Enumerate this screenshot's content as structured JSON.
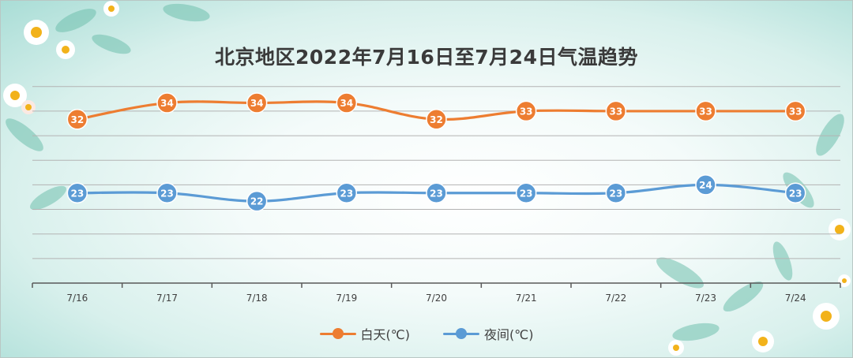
{
  "chart_data": {
    "type": "line",
    "title": "北京地区2022年7月16日至7月24日气温趋势",
    "categories": [
      "7/16",
      "7/17",
      "7/18",
      "7/19",
      "7/20",
      "7/21",
      "7/22",
      "7/23",
      "7/24"
    ],
    "series": [
      {
        "name": "白天(℃)",
        "color": "#ED7D31",
        "values": [
          32,
          34,
          34,
          34,
          32,
          33,
          33,
          33,
          33
        ]
      },
      {
        "name": "夜间(℃)",
        "color": "#5B9BD5",
        "values": [
          23,
          23,
          22,
          23,
          23,
          23,
          23,
          24,
          23
        ]
      }
    ],
    "ylim": [
      12,
      38
    ],
    "grid": true,
    "legend": "bottom",
    "data_labels": true
  }
}
